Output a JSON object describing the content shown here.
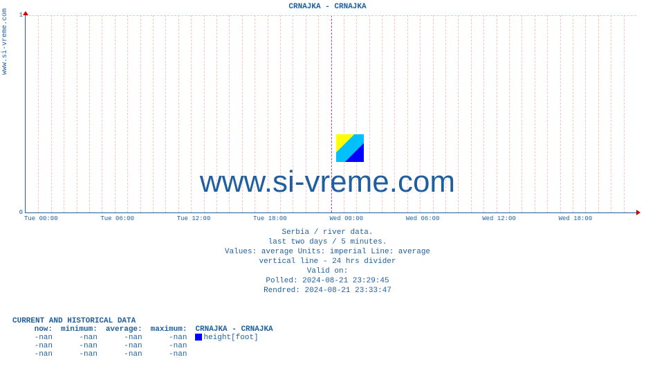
{
  "title": "CRNAJKA -  CRNAJKA",
  "title_color": "#1f5f9f",
  "ylabel_text": "www.si-vreme.com",
  "ylabel_color": "#1f5f9f",
  "watermark_text": "www.si-vreme.com",
  "watermark_color": "#1f5f9f",
  "plot": {
    "border_color": "#1f5f9f",
    "grid_color": "#ffc0c0",
    "divider_color": "#cc33cc",
    "arrow_color": "#cc0000",
    "background": "#ffffff",
    "x_ticks": [
      "Tue 00:00",
      "Tue 06:00",
      "Tue 12:00",
      "Tue 18:00",
      "Wed 00:00",
      "Wed 06:00",
      "Wed 12:00",
      "Wed 18:00"
    ],
    "x_tick_color": "#1f5f9f",
    "x_minor_per_major": 6,
    "y_ticks": [
      "0",
      "1"
    ],
    "y_tick_color": "#1f5f9f",
    "ylim": [
      0,
      1
    ],
    "divider_index": 4
  },
  "subtitles": {
    "color": "#1f5f9f",
    "lines": [
      "Serbia / river data.",
      "last two days / 5 minutes.",
      "Values: average  Units: imperial  Line: average",
      "vertical line - 24 hrs  divider",
      "Valid on:",
      "Polled: 2024-08-21 23:29:45",
      "Rendred: 2024-08-21 23:33:47"
    ]
  },
  "data_block": {
    "header": "CURRENT AND HISTORICAL DATA",
    "header_color": "#1f5f9f",
    "text_color": "#1f5f9f",
    "columns": [
      "now:",
      "minimum:",
      "average:",
      "maximum:"
    ],
    "legend_title": "CRNAJKA -  CRNAJKA",
    "legend_items": [
      {
        "swatch": "#0000ff",
        "label": "height[foot]"
      }
    ],
    "rows": [
      [
        "-nan",
        "-nan",
        "-nan",
        "-nan"
      ],
      [
        "-nan",
        "-nan",
        "-nan",
        "-nan"
      ],
      [
        "-nan",
        "-nan",
        "-nan",
        "-nan"
      ]
    ]
  }
}
